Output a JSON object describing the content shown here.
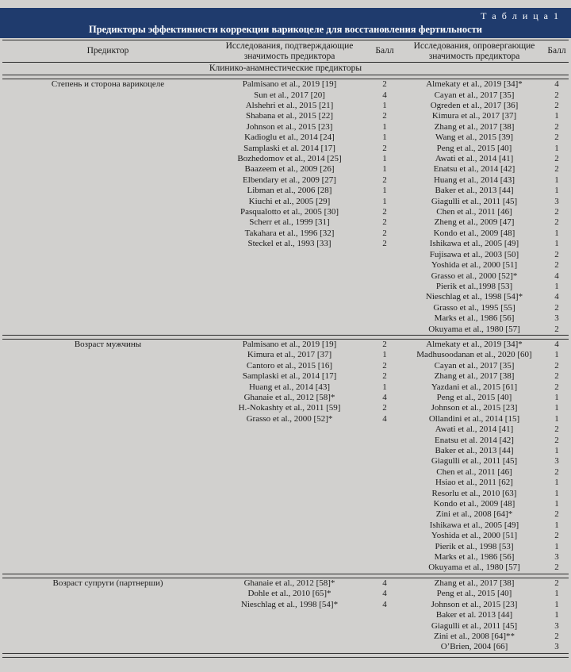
{
  "page": {
    "bg_color": "#d1d0ce",
    "accent_color": "#1f3b6d"
  },
  "table": {
    "label": "Т а б л и ц а  1",
    "title": "Предикторы эффективности коррекции варикоцеле для восстановления фертильности",
    "columns": {
      "predictor": "Предиктор",
      "confirming": "Исследования, подтверждающие значимость предиктора",
      "score1": "Балл",
      "refuting": "Исследования, опровергающие значимость предиктора",
      "score2": "Балл"
    },
    "section": "Клинико-анамнестические предикторы",
    "groups": [
      {
        "predictor": "Степень и сторона варикоцеле",
        "confirming": [
          {
            "study": "Palmisano et al., 2019 [19]",
            "score": "2"
          },
          {
            "study": "Sun et al., 2017 [20]",
            "score": "4"
          },
          {
            "study": "Alshehri et al., 2015 [21]",
            "score": "1"
          },
          {
            "study": "Shabana et al., 2015 [22]",
            "score": "2"
          },
          {
            "study": "Johnson et al., 2015 [23]",
            "score": "1"
          },
          {
            "study": "Kadioglu et al., 2014 [24]",
            "score": "1"
          },
          {
            "study": "Samplaski et al. 2014 [17]",
            "score": "2"
          },
          {
            "study": "Bozhedomov et al., 2014 [25]",
            "score": "1"
          },
          {
            "study": "Baazeem et al., 2009 [26]",
            "score": "1"
          },
          {
            "study": "Elbendary et al., 2009 [27]",
            "score": "2"
          },
          {
            "study": "Libman et al., 2006 [28]",
            "score": "1"
          },
          {
            "study": "Kiuchi et al., 2005 [29]",
            "score": "1"
          },
          {
            "study": "Pasqualotto et al., 2005 [30]",
            "score": "2"
          },
          {
            "study": "Scherr et al., 1999 [31]",
            "score": "2"
          },
          {
            "study": "Takahara et al., 1996 [32]",
            "score": "2"
          },
          {
            "study": "Steckel et al., 1993 [33]",
            "score": "2"
          }
        ],
        "refuting": [
          {
            "study": "Almekaty et al., 2019 [34]*",
            "score": "4"
          },
          {
            "study": "Cayan et al., 2017 [35]",
            "score": "2"
          },
          {
            "study": "Ogreden et al., 2017 [36]",
            "score": "2"
          },
          {
            "study": "Kimura et al., 2017 [37]",
            "score": "1"
          },
          {
            "study": "Zhang et al., 2017 [38]",
            "score": "2"
          },
          {
            "study": "Wang et al., 2015 [39]",
            "score": "2"
          },
          {
            "study": "Peng et al., 2015 [40]",
            "score": "1"
          },
          {
            "study": "Awati et al., 2014 [41]",
            "score": "2"
          },
          {
            "study": "Enatsu et al., 2014 [42]",
            "score": "2"
          },
          {
            "study": "Huang et al., 2014 [43]",
            "score": "1"
          },
          {
            "study": "Baker et al., 2013 [44]",
            "score": "1"
          },
          {
            "study": "Giagulli et al., 2011 [45]",
            "score": "3"
          },
          {
            "study": "Chen et al., 2011 [46]",
            "score": "2"
          },
          {
            "study": "Zheng et al., 2009 [47]",
            "score": "2"
          },
          {
            "study": "Kondo et al., 2009 [48]",
            "score": "1"
          },
          {
            "study": "Ishikawa et al., 2005 [49]",
            "score": "1"
          },
          {
            "study": "Fujisawa et al., 2003 [50]",
            "score": "2"
          },
          {
            "study": "Yoshida et al., 2000 [51]",
            "score": "2"
          },
          {
            "study": "Grasso et al., 2000 [52]*",
            "score": "4"
          },
          {
            "study": "Pierik et al.,1998 [53]",
            "score": "1"
          },
          {
            "study": "Nieschlag et al., 1998 [54]*",
            "score": "4"
          },
          {
            "study": "Grasso et al., 1995 [55]",
            "score": "2"
          },
          {
            "study": "Marks et al., 1986 [56]",
            "score": "3"
          },
          {
            "study": "Okuyama et al., 1980 [57]",
            "score": "2"
          }
        ]
      },
      {
        "predictor": "Возраст мужчины",
        "confirming": [
          {
            "study": "Palmisano et al., 2019 [19]",
            "score": "2"
          },
          {
            "study": "Kimura et al., 2017 [37]",
            "score": "1"
          },
          {
            "study": "Cantoro et al., 2015 [16]",
            "score": "2"
          },
          {
            "study": "Samplaski et al., 2014 [17]",
            "score": "2"
          },
          {
            "study": "Huang et al., 2014 [43]",
            "score": "1"
          },
          {
            "study": "Ghanaie et al., 2012 [58]*",
            "score": "4"
          },
          {
            "study": "H.-Nokashty et al., 2011 [59]",
            "score": "2"
          },
          {
            "study": "Grasso et al., 2000 [52]*",
            "score": "4"
          }
        ],
        "refuting": [
          {
            "study": "Almekaty et al., 2019 [34]*",
            "score": "4"
          },
          {
            "study": "Madhusoodanan et al., 2020 [60]",
            "score": "1"
          },
          {
            "study": "Cayan et al., 2017 [35]",
            "score": "2"
          },
          {
            "study": "Zhang et al., 2017 [38]",
            "score": "2"
          },
          {
            "study": "Yazdani et al., 2015 [61]",
            "score": "2"
          },
          {
            "study": "Peng et al., 2015 [40]",
            "score": "1"
          },
          {
            "study": "Johnson et al., 2015 [23]",
            "score": "1"
          },
          {
            "study": "Ollandini et al., 2014 [15]",
            "score": "1"
          },
          {
            "study": "Awati et al., 2014 [41]",
            "score": "2"
          },
          {
            "study": "Enatsu et al. 2014 [42]",
            "score": "2"
          },
          {
            "study": "Baker et al., 2013 [44]",
            "score": "1"
          },
          {
            "study": "Giagulli et al., 2011 [45]",
            "score": "3"
          },
          {
            "study": "Chen et al., 2011 [46]",
            "score": "2"
          },
          {
            "study": "Hsiao et al., 2011 [62]",
            "score": "1"
          },
          {
            "study": "Resorlu et al., 2010 [63]",
            "score": "1"
          },
          {
            "study": "Kondo et al., 2009 [48]",
            "score": "1"
          },
          {
            "study": "Zini et al., 2008 [64]*",
            "score": "2"
          },
          {
            "study": "Ishikawa et al., 2005 [49]",
            "score": "1"
          },
          {
            "study": "Yoshida et al., 2000 [51]",
            "score": "2"
          },
          {
            "study": "Pierik et al., 1998 [53]",
            "score": "1"
          },
          {
            "study": "Marks et al., 1986 [56]",
            "score": "3"
          },
          {
            "study": "Okuyama et al., 1980 [57]",
            "score": "2"
          }
        ]
      },
      {
        "predictor": "Возраст супруги (партнерши)",
        "confirming": [
          {
            "study": "Ghanaie et al., 2012 [58]*",
            "score": "4"
          },
          {
            "study": "Dohle et al., 2010 [65]*",
            "score": "4"
          },
          {
            "study": "Nieschlag et al., 1998 [54]*",
            "score": "4"
          }
        ],
        "refuting": [
          {
            "study": "Zhang et al., 2017 [38]",
            "score": "2"
          },
          {
            "study": "Peng et al., 2015 [40]",
            "score": "1"
          },
          {
            "study": "Johnson et al., 2015 [23]",
            "score": "1"
          },
          {
            "study": "Baker et al. 2013 [44]",
            "score": "1"
          },
          {
            "study": "Giagulli et al., 2011 [45]",
            "score": "3"
          },
          {
            "study": "Zini et al., 2008 [64]**",
            "score": "2"
          },
          {
            "study": "O’Brien, 2004 [66]",
            "score": "3"
          }
        ]
      }
    ]
  }
}
